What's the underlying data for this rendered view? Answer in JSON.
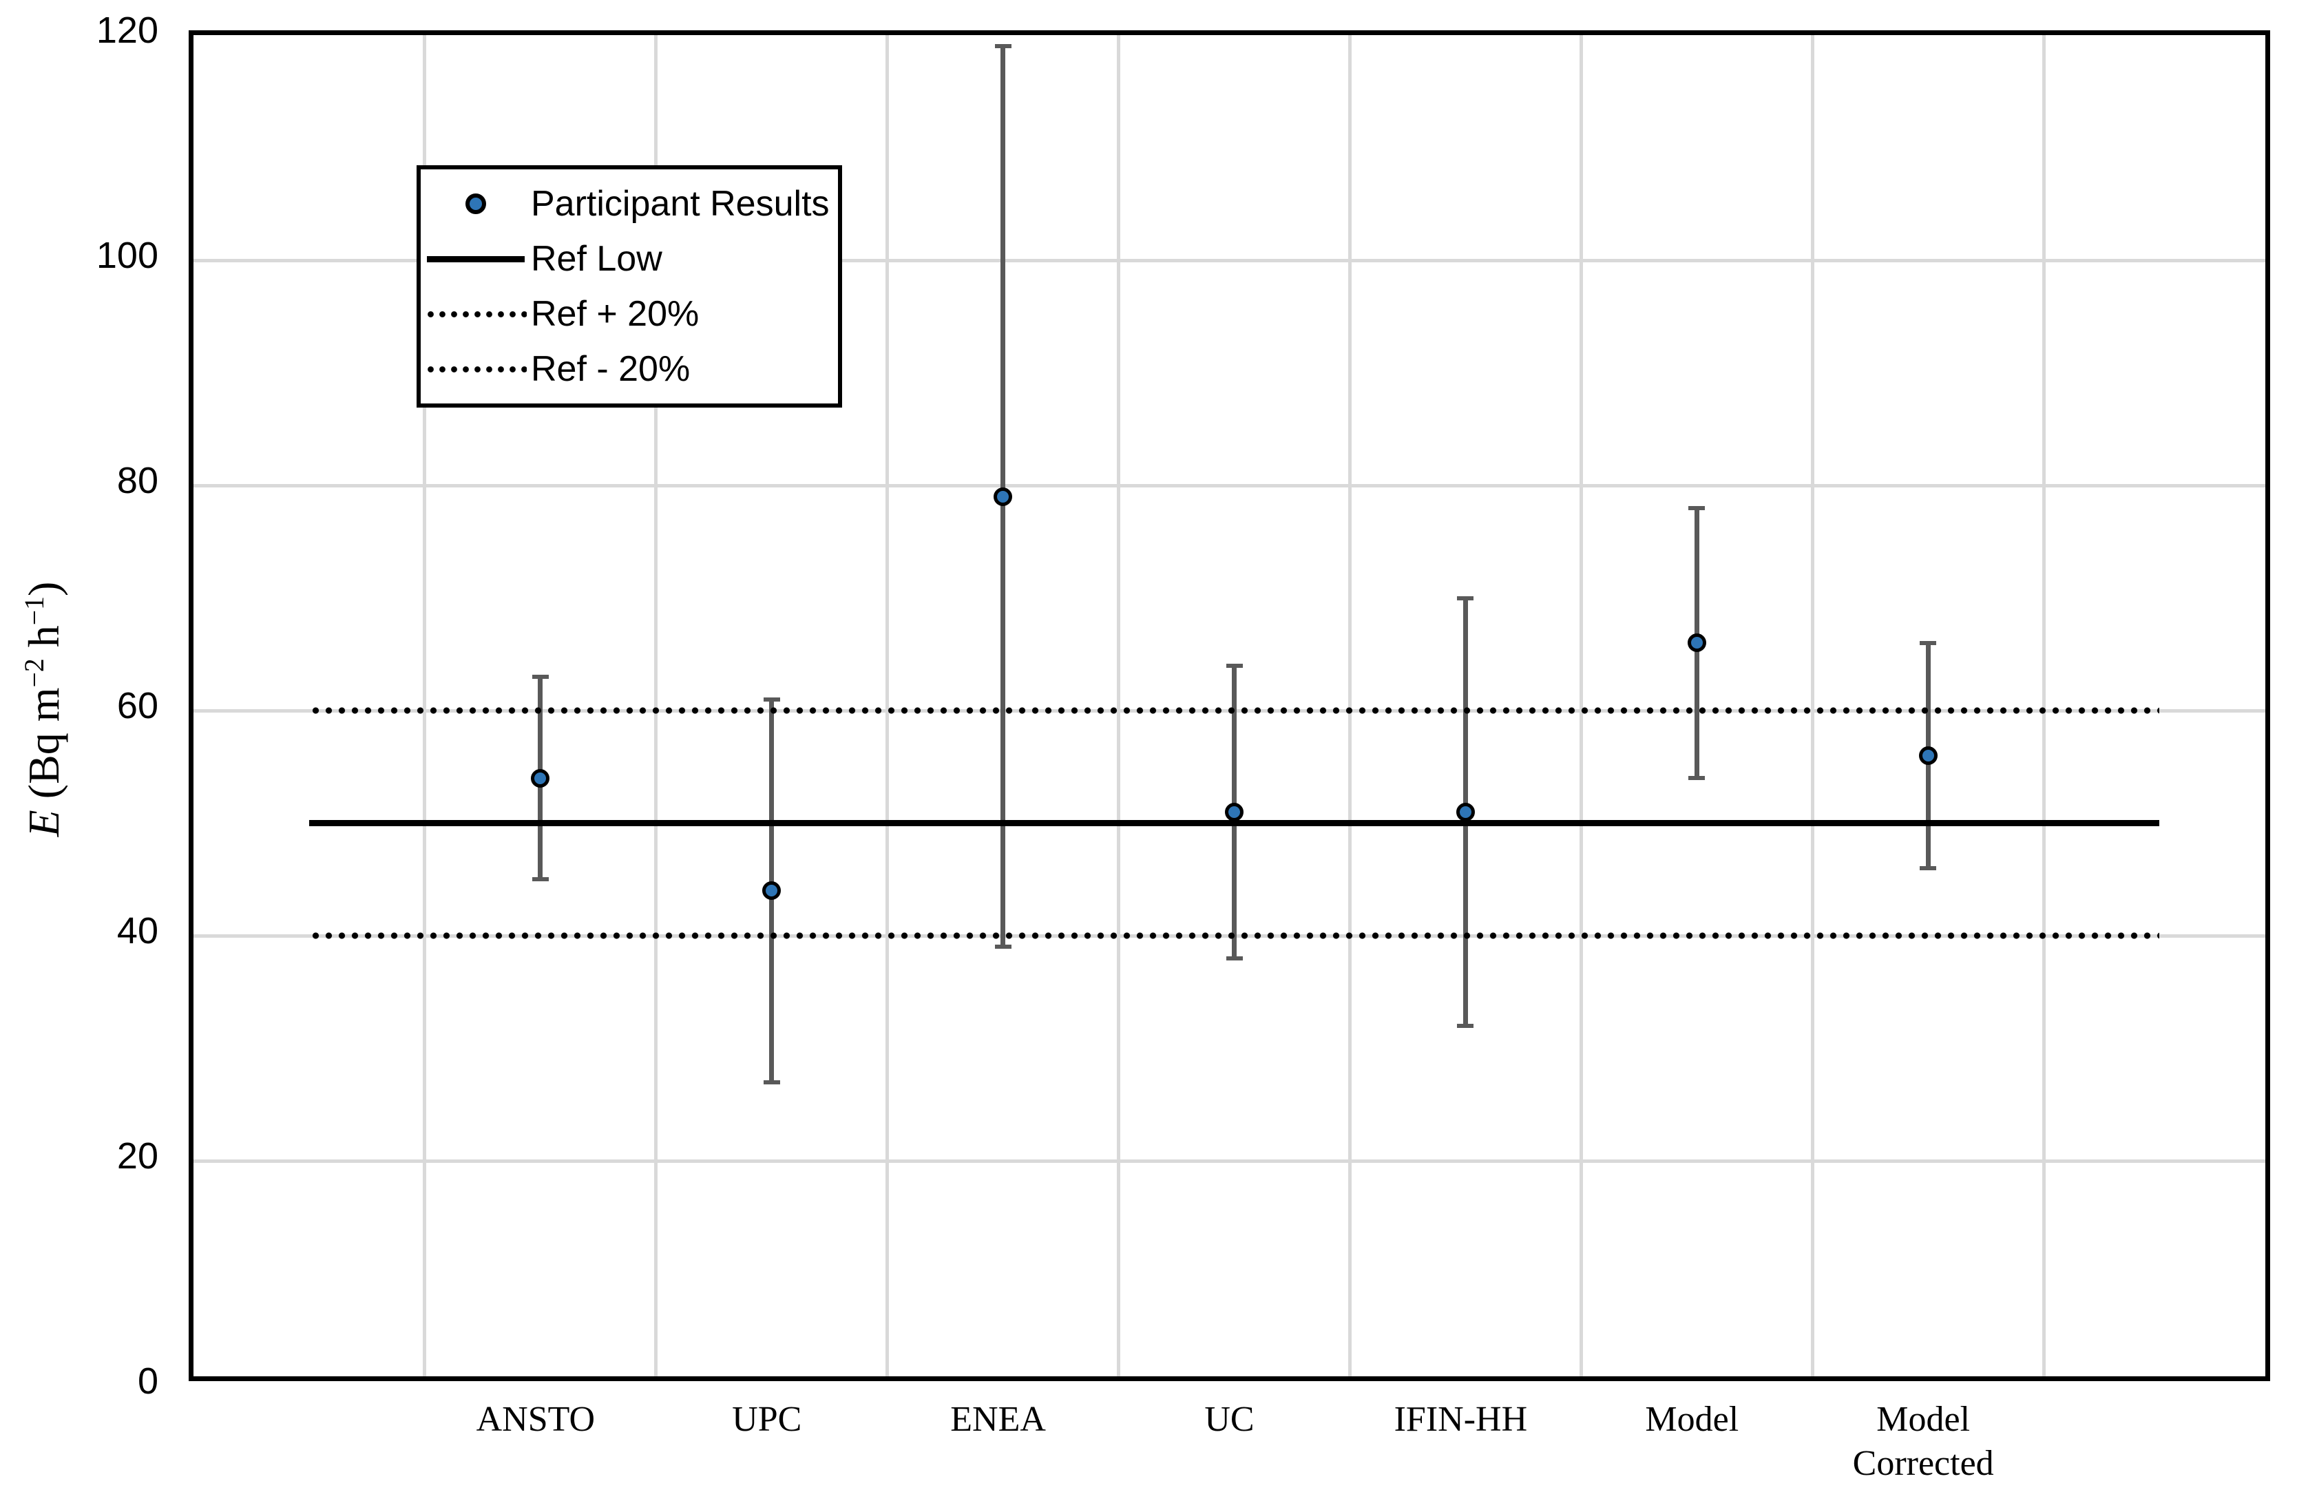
{
  "chart_data": {
    "type": "scatter",
    "title": "",
    "xlabel": "",
    "ylabel": "E (Bq m−2 h−1)",
    "ylim": [
      0,
      120
    ],
    "yticks": [
      0,
      20,
      40,
      60,
      80,
      100,
      120
    ],
    "grid": true,
    "legend_position": "upper-left-inside",
    "categories": [
      "ANSTO",
      "UPC",
      "ENEA",
      "UC",
      "IFIN-HH",
      "Model",
      "Model\nCorrected"
    ],
    "series": [
      {
        "name": "Participant Results",
        "type": "scatter",
        "values": [
          54,
          44,
          79,
          51,
          51,
          66,
          56
        ],
        "error_low": [
          45,
          27,
          39,
          38,
          32,
          54,
          46
        ],
        "error_high": [
          63,
          61,
          119,
          64,
          70,
          78,
          66
        ]
      },
      {
        "name": "Ref Low",
        "type": "line",
        "value": 50
      },
      {
        "name": "Ref + 20%",
        "type": "dotted-line",
        "value": 60
      },
      {
        "name": "Ref - 20%",
        "type": "dotted-line",
        "value": 40
      }
    ]
  },
  "legend": {
    "participant": "Participant Results",
    "ref_low": "Ref Low",
    "ref_plus": "Ref + 20%",
    "ref_minus": "Ref - 20%"
  },
  "y_axis": {
    "title_e": "E",
    "title_p1": " (Bq m",
    "title_s1": "−2",
    "title_p2": " h",
    "title_s2": "−1",
    "title_p3": ")"
  },
  "colors": {
    "marker_fill": "#2E75B6",
    "marker_ring": "#000000",
    "error_bar": "#595959",
    "reference_line": "#000000",
    "gridline": "#D9D9D9"
  }
}
